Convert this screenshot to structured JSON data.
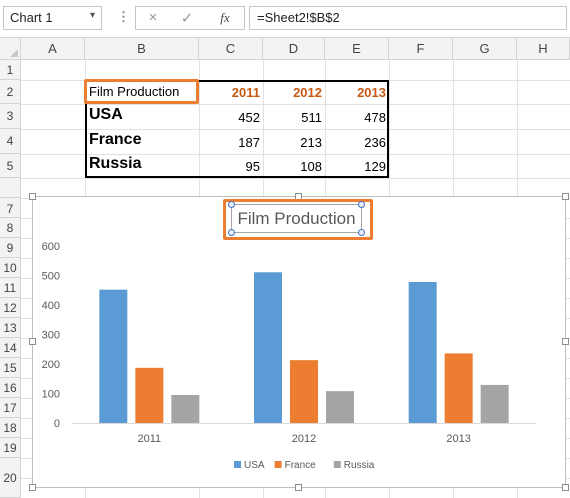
{
  "formula_bar": {
    "name_box": "Chart 1",
    "name_box_dropdown": "▾",
    "separator": "⋮",
    "cancel_icon": "×",
    "enter_icon": "✓",
    "function_icon": "fx",
    "formula": "=Sheet2!$B$2"
  },
  "columns": [
    "A",
    "B",
    "C",
    "D",
    "E",
    "F",
    "G",
    "H"
  ],
  "rows": [
    "1",
    "2",
    "3",
    "4",
    "5",
    "7",
    "8",
    "9",
    "10",
    "11",
    "12",
    "13",
    "14",
    "15",
    "16",
    "17",
    "18",
    "19",
    "20"
  ],
  "table": {
    "header": "Film Production",
    "years": [
      "2011",
      "2012",
      "2013"
    ],
    "countries": [
      {
        "name": "USA",
        "values": [
          "452",
          "511",
          "478"
        ]
      },
      {
        "name": "France",
        "values": [
          "187",
          "213",
          "236"
        ]
      },
      {
        "name": "Russia",
        "values": [
          "95",
          "108",
          "129"
        ]
      }
    ]
  },
  "colors": {
    "accent": "#ed7d31",
    "year_text": "#c65911",
    "usa": "#5b9bd5",
    "france": "#ed7d31",
    "russia": "#a5a5a5"
  },
  "chart_data": {
    "type": "bar",
    "title": "Film Production",
    "categories": [
      "2011",
      "2012",
      "2013"
    ],
    "series": [
      {
        "name": "USA",
        "values": [
          452,
          511,
          478
        ]
      },
      {
        "name": "France",
        "values": [
          187,
          213,
          236
        ]
      },
      {
        "name": "Russia",
        "values": [
          95,
          108,
          129
        ]
      }
    ],
    "ylim": [
      0,
      600
    ],
    "yticks": [
      "0",
      "100",
      "200",
      "300",
      "400",
      "500",
      "600"
    ],
    "grid": false,
    "legend": "bottom"
  }
}
